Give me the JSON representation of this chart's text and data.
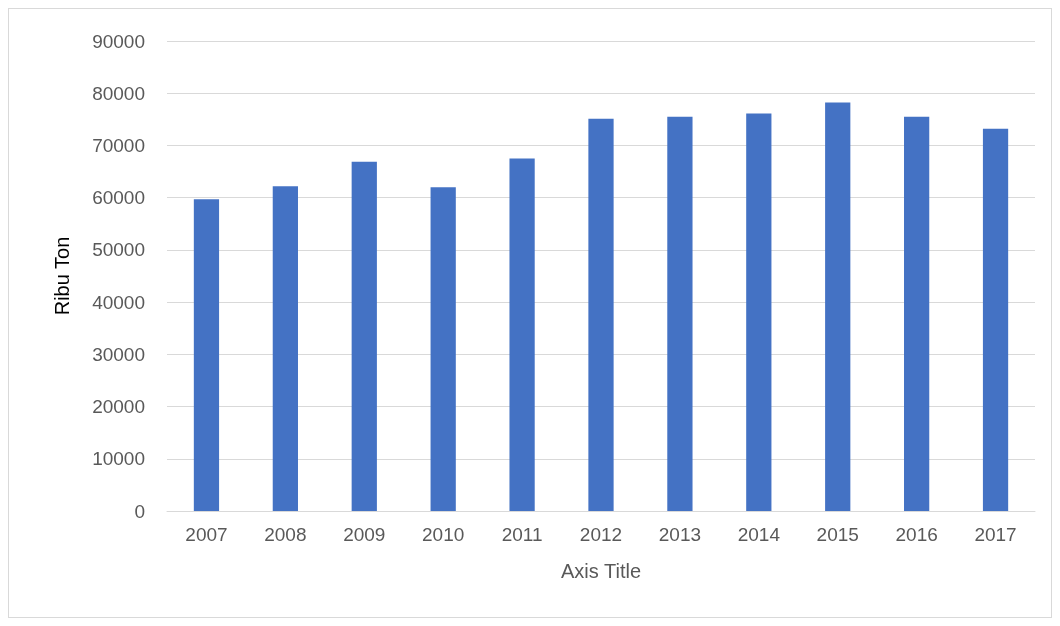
{
  "chart_data": {
    "type": "bar",
    "xlabel": "Axis Title",
    "ylabel": "Ribu Ton",
    "categories": [
      "2007",
      "2008",
      "2009",
      "2010",
      "2011",
      "2012",
      "2013",
      "2014",
      "2015",
      "2016",
      "2017"
    ],
    "values": [
      59700,
      62200,
      66900,
      62000,
      67500,
      75100,
      75500,
      76100,
      78200,
      75500,
      73200
    ],
    "color": "#4472c4",
    "ylim": [
      0,
      90000
    ],
    "yticks": [
      0,
      10000,
      20000,
      30000,
      40000,
      50000,
      60000,
      70000,
      80000,
      90000
    ],
    "grid": "y"
  }
}
